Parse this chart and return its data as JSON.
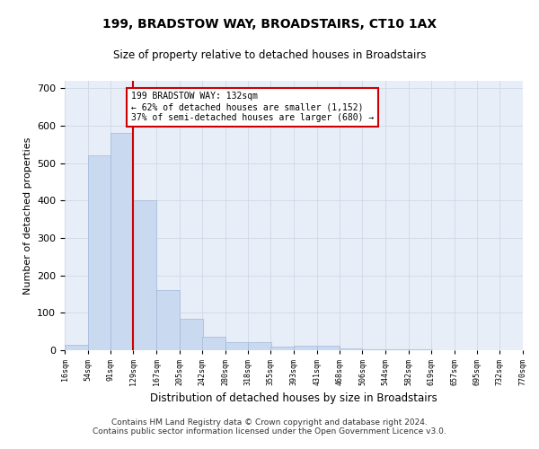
{
  "title1": "199, BRADSTOW WAY, BROADSTAIRS, CT10 1AX",
  "title2": "Size of property relative to detached houses in Broadstairs",
  "xlabel": "Distribution of detached houses by size in Broadstairs",
  "ylabel": "Number of detached properties",
  "footer1": "Contains HM Land Registry data © Crown copyright and database right 2024.",
  "footer2": "Contains public sector information licensed under the Open Government Licence v3.0.",
  "annotation_line1": "199 BRADSTOW WAY: 132sqm",
  "annotation_line2": "← 62% of detached houses are smaller (1,152)",
  "annotation_line3": "37% of semi-detached houses are larger (680) →",
  "property_size": 132,
  "bin_edges": [
    16,
    54,
    91,
    129,
    167,
    205,
    242,
    280,
    318,
    355,
    393,
    431,
    468,
    506,
    544,
    582,
    619,
    657,
    695,
    732,
    770
  ],
  "bin_counts": [
    15,
    520,
    580,
    400,
    160,
    85,
    35,
    22,
    22,
    10,
    12,
    12,
    5,
    3,
    2,
    2,
    1,
    1,
    0,
    1
  ],
  "bar_color": "#c9d9f0",
  "bar_edge_color": "#a0b8d8",
  "vline_color": "#cc0000",
  "vline_x": 129,
  "annotation_box_color": "#cc0000",
  "background_color": "#ffffff",
  "axes_bg_color": "#e8eef8",
  "grid_color": "#d0d8e8",
  "ylim": [
    0,
    720
  ],
  "yticks": [
    0,
    100,
    200,
    300,
    400,
    500,
    600,
    700
  ]
}
